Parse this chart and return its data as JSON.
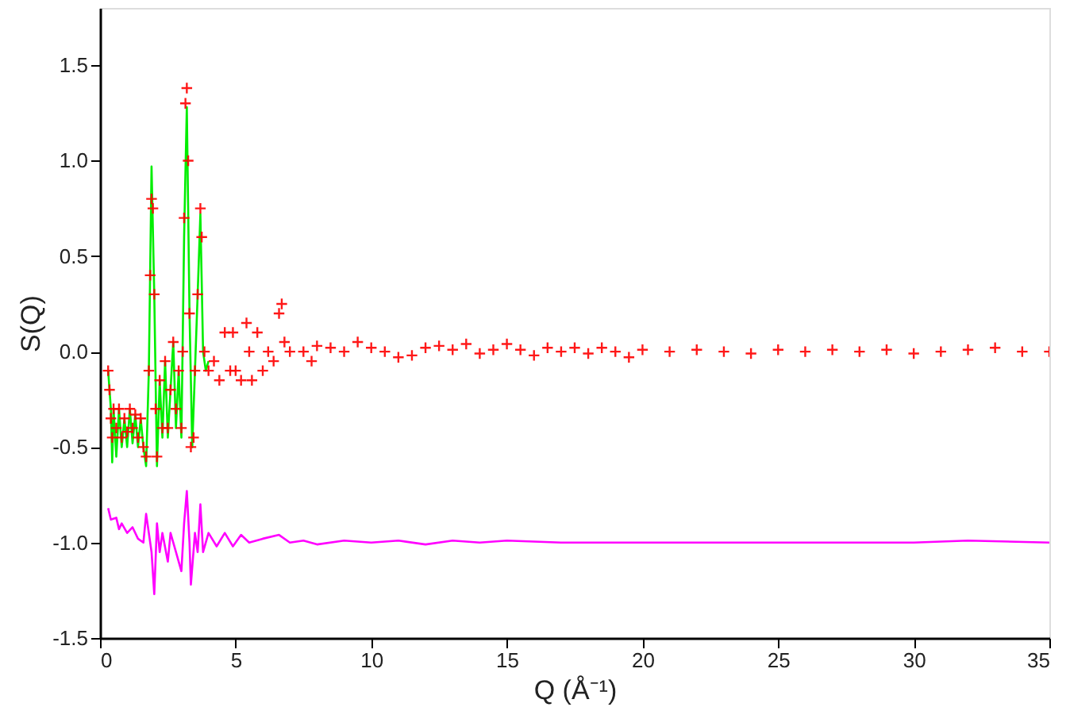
{
  "chart_data": {
    "type": "line",
    "xlabel": "Q (Å⁻¹)",
    "ylabel": "S(Q)",
    "xlim": [
      0,
      35
    ],
    "ylim": [
      -1.5,
      1.8
    ],
    "xticks": [
      0,
      5,
      10,
      15,
      20,
      25,
      30,
      35
    ],
    "yticks": [
      {
        "value": -1.5,
        "label": "-1.5"
      },
      {
        "value": -1.0,
        "label": "-1.0"
      },
      {
        "value": -0.5,
        "label": "-0.5"
      },
      {
        "value": 0,
        "label": "0.0"
      },
      {
        "value": 0.5,
        "label": "0.5"
      },
      {
        "value": 1.0,
        "label": "1.0"
      },
      {
        "value": 1.5,
        "label": "1.5"
      }
    ],
    "grid": false,
    "series": [
      {
        "color": "#00ee00",
        "marker": "none",
        "line_style": "solid",
        "x": [
          0.3,
          0.4,
          0.45,
          0.5,
          0.6,
          0.7,
          0.8,
          0.9,
          1.0,
          1.1,
          1.2,
          1.3,
          1.4,
          1.5,
          1.6,
          1.7,
          1.8,
          1.9,
          2.0,
          2.1,
          2.2,
          2.3,
          2.4,
          2.5,
          2.6,
          2.7,
          2.8,
          2.9,
          3.0,
          3.1,
          3.2,
          3.3,
          3.4,
          3.5,
          3.6,
          3.7,
          3.8,
          3.9,
          4.0
        ],
        "values": [
          -0.1,
          -0.3,
          -0.58,
          -0.3,
          -0.55,
          -0.3,
          -0.5,
          -0.35,
          -0.5,
          -0.3,
          -0.48,
          -0.33,
          -0.5,
          -0.35,
          -0.5,
          -0.6,
          -0.1,
          0.97,
          0.3,
          -0.6,
          -0.15,
          -0.45,
          -0.05,
          -0.45,
          -0.2,
          0.05,
          -0.4,
          -0.1,
          -0.45,
          0.6,
          1.28,
          0.2,
          -0.5,
          -0.1,
          0.3,
          0.72,
          0.0,
          -0.1,
          -0.05
        ]
      },
      {
        "type": "scatter",
        "color": "#ff0000",
        "marker": "cross",
        "x": [
          0.3,
          0.35,
          0.4,
          0.45,
          0.5,
          0.6,
          0.7,
          0.8,
          0.9,
          1.0,
          1.1,
          1.2,
          1.3,
          1.4,
          1.5,
          1.6,
          1.7,
          1.8,
          1.85,
          1.9,
          1.95,
          2.0,
          2.05,
          2.1,
          2.2,
          2.3,
          2.4,
          2.5,
          2.6,
          2.7,
          2.8,
          2.9,
          3.0,
          3.05,
          3.1,
          3.15,
          3.2,
          3.25,
          3.3,
          3.35,
          3.45,
          3.5,
          3.6,
          3.7,
          3.75,
          3.85,
          4.0,
          4.2,
          4.4,
          4.6,
          4.8,
          4.9,
          5.0,
          5.2,
          5.4,
          5.5,
          5.6,
          5.8,
          6.0,
          6.2,
          6.4,
          6.6,
          6.7,
          6.8,
          7.0,
          7.5,
          7.8,
          8.0,
          8.5,
          9.0,
          9.5,
          10,
          10.5,
          11,
          11.5,
          12,
          12.5,
          13,
          13.5,
          14,
          14.5,
          15,
          15.5,
          16,
          16.5,
          17,
          17.5,
          18,
          18.5,
          19,
          19.5,
          20,
          21,
          22,
          23,
          24,
          25,
          26,
          27,
          28,
          29,
          30,
          31,
          32,
          33,
          34,
          35
        ],
        "values": [
          -0.1,
          -0.2,
          -0.35,
          -0.45,
          -0.3,
          -0.4,
          -0.3,
          -0.45,
          -0.35,
          -0.42,
          -0.3,
          -0.4,
          -0.33,
          -0.45,
          -0.35,
          -0.5,
          -0.55,
          -0.1,
          0.4,
          0.8,
          0.75,
          0.3,
          -0.3,
          -0.55,
          -0.15,
          -0.4,
          -0.05,
          -0.4,
          -0.2,
          0.05,
          -0.3,
          -0.1,
          -0.4,
          0.0,
          0.7,
          1.3,
          1.38,
          1.0,
          0.2,
          -0.5,
          -0.45,
          -0.1,
          0.3,
          0.75,
          0.6,
          0.0,
          -0.1,
          -0.05,
          -0.15,
          0.1,
          -0.1,
          0.1,
          -0.1,
          -0.15,
          0.15,
          0.0,
          -0.15,
          0.1,
          -0.1,
          0.0,
          -0.05,
          0.2,
          0.25,
          0.05,
          0.0,
          0.0,
          -0.05,
          0.03,
          0.02,
          0.0,
          0.05,
          0.02,
          0.0,
          -0.03,
          -0.02,
          0.02,
          0.03,
          0.01,
          0.04,
          -0.01,
          0.01,
          0.04,
          0.01,
          -0.02,
          0.02,
          0.0,
          0.02,
          -0.01,
          0.02,
          0.0,
          -0.03,
          0.01,
          0.0,
          0.01,
          0.0,
          -0.01,
          0.01,
          0.0,
          0.01,
          0.0,
          0.01,
          -0.01,
          0.0,
          0.01,
          0.02,
          0.0,
          0.0
        ]
      },
      {
        "color": "#ff00ff",
        "marker": "none",
        "line_style": "solid",
        "x": [
          0.3,
          0.4,
          0.6,
          0.7,
          0.8,
          1.0,
          1.2,
          1.4,
          1.6,
          1.7,
          1.9,
          2.0,
          2.1,
          2.2,
          2.3,
          2.5,
          2.6,
          2.8,
          3.0,
          3.1,
          3.2,
          3.3,
          3.35,
          3.5,
          3.6,
          3.7,
          3.8,
          4.0,
          4.3,
          4.6,
          4.9,
          5.2,
          5.5,
          6.0,
          6.6,
          7.0,
          7.5,
          8.0,
          9,
          10,
          11,
          12,
          13,
          14,
          15,
          17,
          20,
          25,
          30,
          32,
          35
        ],
        "values": [
          -0.82,
          -0.88,
          -0.87,
          -0.93,
          -0.9,
          -0.95,
          -0.92,
          -0.98,
          -1.0,
          -0.85,
          -1.05,
          -1.27,
          -0.9,
          -1.05,
          -0.95,
          -1.1,
          -0.95,
          -1.05,
          -1.15,
          -0.9,
          -0.73,
          -1.0,
          -1.22,
          -0.95,
          -1.05,
          -0.8,
          -1.05,
          -0.95,
          -1.02,
          -0.95,
          -1.02,
          -0.96,
          -1.0,
          -0.98,
          -0.96,
          -1.0,
          -0.99,
          -1.01,
          -0.99,
          -1.0,
          -0.99,
          -1.01,
          -0.99,
          -1.0,
          -0.99,
          -1.0,
          -1.0,
          -1.0,
          -1.0,
          -0.99,
          -1.0
        ]
      }
    ]
  }
}
